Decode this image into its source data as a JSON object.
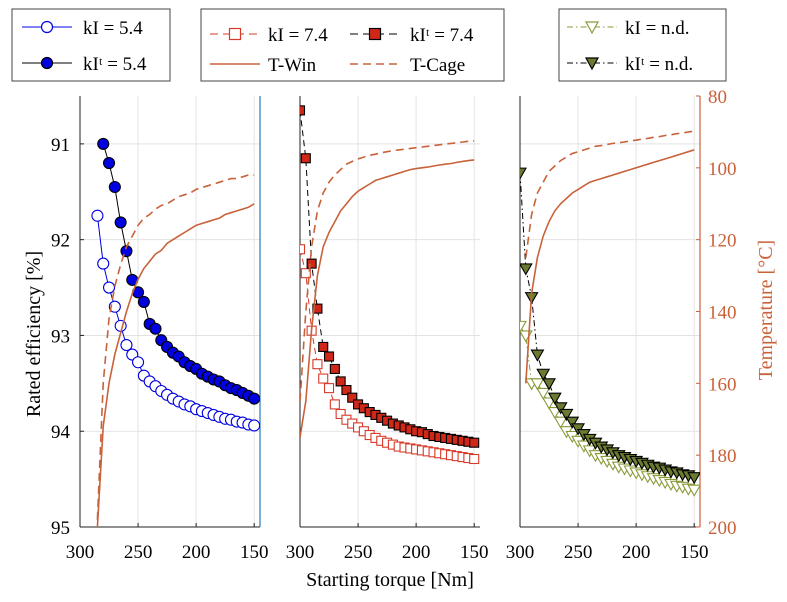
{
  "colors": {
    "blue": "#0000e0",
    "black": "#000000",
    "red": "#d83a2a",
    "darkRedFill": "#d02818",
    "olive": "#8a9a3a",
    "oliveDark": "#5a6a28",
    "orange": "#c8623a",
    "grid": "#e3e3e3",
    "axis": "#222222",
    "rightAxis": "#2a7ab8"
  },
  "chart_data": [
    {
      "type": "line",
      "panel": "left",
      "xlabel": "Starting torque [Nm]",
      "ylabel": "Rated efficiency [%]",
      "y2label": "Temperature [°C]",
      "xlim": [
        300,
        145
      ],
      "ylim": [
        95,
        90.5
      ],
      "xticks": [
        "300",
        "250",
        "200",
        "150"
      ],
      "yticks": [
        "91",
        "92",
        "93",
        "94",
        "95"
      ],
      "series": [
        {
          "name": "kI = 5.4",
          "x": [
            285,
            280,
            275,
            270,
            265,
            260,
            255,
            250,
            245,
            240,
            235,
            230,
            225,
            220,
            215,
            210,
            205,
            200,
            195,
            190,
            185,
            180,
            175,
            170,
            165,
            160,
            155,
            150
          ],
          "values": [
            91.75,
            92.25,
            92.5,
            92.7,
            92.9,
            93.1,
            93.2,
            93.28,
            93.42,
            93.48,
            93.53,
            93.58,
            93.62,
            93.66,
            93.69,
            93.72,
            93.74,
            93.77,
            93.79,
            93.81,
            93.83,
            93.85,
            93.87,
            93.88,
            93.9,
            93.91,
            93.93,
            93.94
          ]
        },
        {
          "name": "kIᵗ = 5.4",
          "x": [
            280,
            275,
            270,
            265,
            260,
            255,
            250,
            245,
            240,
            235,
            230,
            225,
            220,
            215,
            210,
            205,
            200,
            195,
            190,
            185,
            180,
            175,
            170,
            165,
            160,
            155,
            150
          ],
          "values": [
            91.0,
            91.2,
            91.45,
            91.82,
            92.12,
            92.42,
            92.55,
            92.65,
            92.88,
            92.93,
            93.05,
            93.12,
            93.18,
            93.22,
            93.28,
            93.32,
            93.35,
            93.4,
            93.43,
            93.46,
            93.48,
            93.52,
            93.55,
            93.57,
            93.6,
            93.63,
            93.66
          ]
        },
        {
          "name": "T-Win",
          "axis": "right",
          "x": [
            285,
            280,
            275,
            270,
            265,
            260,
            255,
            250,
            245,
            240,
            235,
            230,
            225,
            220,
            215,
            210,
            205,
            200,
            195,
            190,
            185,
            180,
            175,
            170,
            165,
            160,
            155,
            150
          ],
          "values": [
            200,
            172,
            160,
            152,
            146,
            140,
            135,
            131,
            128,
            126,
            124,
            123,
            121,
            120,
            119,
            118,
            117,
            116,
            115.5,
            115,
            114.5,
            114,
            113,
            112.5,
            112,
            111.5,
            111,
            110
          ]
        },
        {
          "name": "T-Cage",
          "axis": "right",
          "x": [
            285,
            280,
            275,
            270,
            265,
            260,
            255,
            250,
            245,
            240,
            235,
            230,
            225,
            220,
            215,
            210,
            205,
            200,
            195,
            190,
            185,
            180,
            175,
            170,
            165,
            160,
            155,
            150
          ],
          "values": [
            198,
            160,
            142,
            133,
            127,
            122,
            119,
            116,
            114,
            113,
            111.5,
            110.5,
            110,
            109,
            108,
            107.5,
            107,
            106,
            105.5,
            105,
            104.5,
            104,
            103.5,
            103,
            103,
            102.5,
            102,
            102
          ]
        }
      ]
    },
    {
      "type": "line",
      "panel": "middle",
      "xlim": [
        300,
        145
      ],
      "ylim": [
        95,
        90.5
      ],
      "xticks": [
        "300",
        "250",
        "200",
        "150"
      ],
      "series": [
        {
          "name": "kI = 7.4",
          "x": [
            300,
            295,
            290,
            285,
            280,
            275,
            270,
            265,
            260,
            255,
            250,
            245,
            240,
            235,
            230,
            225,
            220,
            215,
            210,
            205,
            200,
            195,
            190,
            185,
            180,
            175,
            170,
            165,
            160,
            155,
            150
          ],
          "values": [
            92.1,
            92.35,
            92.95,
            93.3,
            93.45,
            93.55,
            93.72,
            93.82,
            93.88,
            93.92,
            93.96,
            94.0,
            94.04,
            94.07,
            94.1,
            94.12,
            94.14,
            94.16,
            94.17,
            94.18,
            94.19,
            94.2,
            94.21,
            94.22,
            94.23,
            94.24,
            94.25,
            94.26,
            94.27,
            94.28,
            94.29
          ]
        },
        {
          "name": "kIᵗ = 7.4",
          "x": [
            300,
            295,
            290,
            285,
            280,
            275,
            270,
            265,
            260,
            255,
            250,
            245,
            240,
            235,
            230,
            225,
            220,
            215,
            210,
            205,
            200,
            195,
            190,
            185,
            180,
            175,
            170,
            165,
            160,
            155,
            150
          ],
          "values": [
            90.65,
            91.15,
            92.25,
            92.72,
            93.12,
            93.22,
            93.35,
            93.48,
            93.57,
            93.65,
            93.72,
            93.76,
            93.8,
            93.83,
            93.86,
            93.89,
            93.92,
            93.94,
            93.96,
            93.98,
            94.0,
            94.01,
            94.03,
            94.05,
            94.06,
            94.07,
            94.08,
            94.09,
            94.1,
            94.11,
            94.12
          ]
        },
        {
          "name": "T-Win",
          "axis": "right",
          "x": [
            300,
            295,
            290,
            285,
            280,
            275,
            270,
            265,
            260,
            255,
            250,
            245,
            240,
            235,
            230,
            225,
            220,
            215,
            210,
            205,
            200,
            195,
            190,
            185,
            180,
            175,
            170,
            165,
            160,
            155,
            150
          ],
          "values": [
            175,
            165,
            145,
            130,
            122,
            118,
            115,
            112,
            110,
            108,
            106.5,
            105.5,
            104.5,
            103.5,
            103,
            102.5,
            102,
            101.5,
            101,
            100.5,
            100.2,
            100,
            99.8,
            99.5,
            99.2,
            99,
            98.8,
            98.5,
            98.2,
            98,
            97.8
          ]
        },
        {
          "name": "T-Cage",
          "axis": "right",
          "x": [
            300,
            295,
            290,
            285,
            280,
            275,
            270,
            265,
            260,
            255,
            250,
            245,
            240,
            235,
            230,
            225,
            220,
            215,
            210,
            205,
            200,
            195,
            190,
            185,
            180,
            175,
            170,
            165,
            160,
            155,
            150
          ],
          "values": [
            165,
            140,
            122,
            112,
            107,
            104,
            102,
            100.5,
            99,
            98.2,
            97.5,
            97,
            96.5,
            96.2,
            95.8,
            95.5,
            95.2,
            95,
            94.8,
            94.6,
            94.4,
            94.2,
            94,
            93.8,
            93.6,
            93.4,
            93.2,
            93,
            92.8,
            92.6,
            92.5
          ]
        }
      ]
    },
    {
      "type": "line",
      "panel": "right",
      "xlim": [
        300,
        145
      ],
      "y2lim": [
        80,
        200
      ],
      "xticks": [
        "300",
        "250",
        "200",
        "150"
      ],
      "y2ticks": [
        "80",
        "100",
        "120",
        "140",
        "160",
        "180",
        "200"
      ],
      "series": [
        {
          "name": "kI = n.d.",
          "x": [
            300,
            295,
            290,
            285,
            280,
            275,
            270,
            265,
            260,
            255,
            250,
            245,
            240,
            235,
            230,
            225,
            220,
            215,
            210,
            205,
            200,
            195,
            190,
            185,
            180,
            175,
            170,
            165,
            160,
            155,
            150
          ],
          "values": [
            92.9,
            93.0,
            93.5,
            93.5,
            93.6,
            93.7,
            93.8,
            93.9,
            94.0,
            94.05,
            94.1,
            94.15,
            94.2,
            94.25,
            94.28,
            94.31,
            94.34,
            94.37,
            94.39,
            94.41,
            94.43,
            94.45,
            94.47,
            94.49,
            94.51,
            94.53,
            94.55,
            94.57,
            94.58,
            94.6,
            94.61
          ]
        },
        {
          "name": "kIᵗ = n.d.",
          "x": [
            300,
            295,
            290,
            285,
            280,
            275,
            270,
            265,
            260,
            255,
            250,
            245,
            240,
            235,
            230,
            225,
            220,
            215,
            210,
            205,
            200,
            195,
            190,
            185,
            180,
            175,
            170,
            165,
            160,
            155,
            150
          ],
          "values": [
            91.3,
            92.3,
            92.6,
            93.2,
            93.4,
            93.5,
            93.65,
            93.75,
            93.82,
            93.9,
            93.97,
            94.03,
            94.08,
            94.12,
            94.16,
            94.19,
            94.22,
            94.25,
            94.27,
            94.29,
            94.31,
            94.33,
            94.35,
            94.37,
            94.38,
            94.4,
            94.42,
            94.43,
            94.45,
            94.46,
            94.48
          ]
        },
        {
          "name": "T-Win",
          "axis": "right",
          "x": [
            295,
            290,
            285,
            280,
            275,
            270,
            265,
            260,
            255,
            250,
            245,
            240,
            235,
            230,
            225,
            220,
            215,
            210,
            205,
            200,
            195,
            190,
            185,
            180,
            175,
            170,
            165,
            160,
            155,
            150
          ],
          "values": [
            160,
            135,
            125,
            119,
            115,
            112,
            110,
            108.5,
            107,
            106,
            105,
            104,
            103.5,
            103,
            102.5,
            102,
            101.5,
            101,
            100.5,
            100,
            99.5,
            99,
            98.5,
            98,
            97.5,
            97,
            96.5,
            96,
            95.5,
            95
          ]
        },
        {
          "name": "T-Cage",
          "axis": "right",
          "x": [
            295,
            290,
            285,
            280,
            275,
            270,
            265,
            260,
            255,
            250,
            245,
            240,
            235,
            230,
            225,
            220,
            215,
            210,
            205,
            200,
            195,
            190,
            185,
            180,
            175,
            170,
            165,
            160,
            155,
            150
          ],
          "values": [
            125,
            113,
            107,
            104,
            101,
            99.5,
            98,
            97,
            96,
            95.5,
            95,
            94.5,
            94,
            93.8,
            93.5,
            93.2,
            93,
            92.8,
            92.5,
            92.3,
            92,
            91.8,
            91.5,
            91.3,
            91,
            90.8,
            90.5,
            90.3,
            90,
            89.8
          ]
        }
      ]
    }
  ],
  "legend": {
    "box1": [
      "kI = 5.4",
      "kIᵗ = 5.4"
    ],
    "box2": [
      "kI = 7.4",
      "kIᵗ = 7.4",
      "T-Win",
      "T-Cage"
    ],
    "box3": [
      "kI = n.d.",
      "kIᵗ = n.d."
    ]
  }
}
